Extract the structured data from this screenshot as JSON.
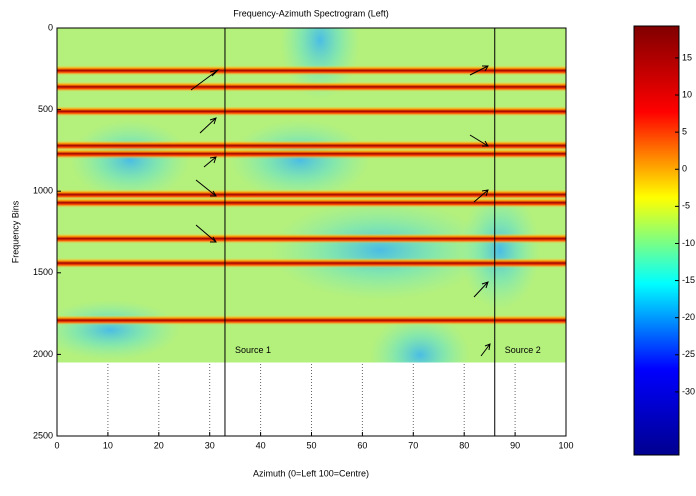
{
  "chart_data": {
    "type": "spectrogram",
    "title": "Frequency-Azimuth Spectrogram (Left)",
    "x_label": "Azimuth (0=Left 100=Centre)",
    "y_label": "Frequency Bins",
    "xlim": [
      0,
      100
    ],
    "xticks": [
      0,
      10,
      20,
      30,
      40,
      50,
      60,
      70,
      80,
      90,
      100
    ],
    "ylim": [
      2500,
      0
    ],
    "yticks": [
      0,
      500,
      1000,
      1500,
      2000,
      2500
    ],
    "image_extent": [
      0,
      2050
    ],
    "grid": true,
    "colormap": "jet",
    "clim": [
      -38.5,
      19.3
    ],
    "colorbar_ticks": [
      15,
      10,
      5,
      0,
      -5,
      -10,
      -15,
      -20,
      -25,
      -30
    ],
    "bands": [
      260,
      360,
      510,
      720,
      770,
      1020,
      1070,
      1290,
      1440,
      1790
    ],
    "sources": [
      {
        "label": "Source 1",
        "azimuth": 33
      },
      {
        "label": "Source 2",
        "azimuth": 86
      }
    ]
  }
}
